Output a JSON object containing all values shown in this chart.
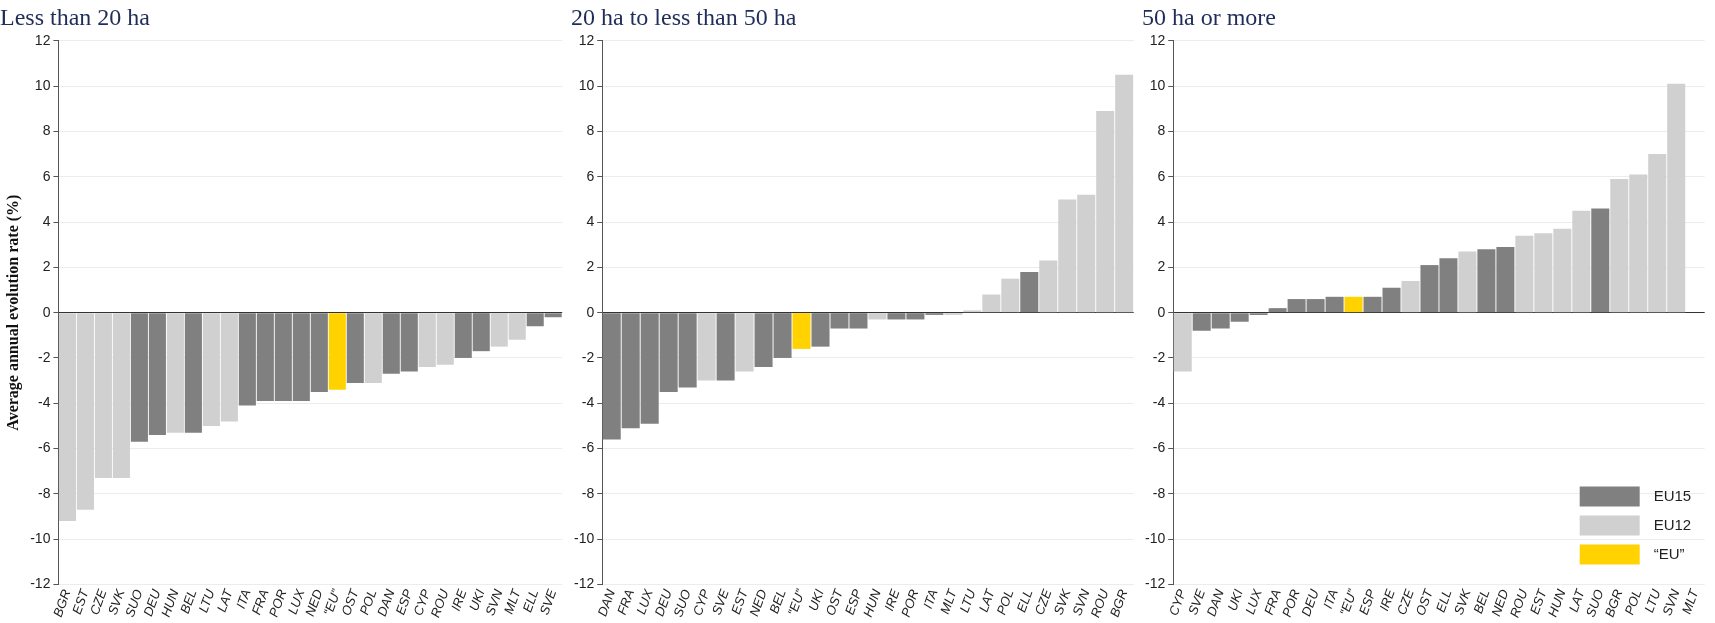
{
  "chart_data": [
    {
      "type": "bar",
      "stacked": true,
      "title": "Less than 20 ha",
      "ylabel": "Average annual evolution rate (%)",
      "categories": [
        "BGR",
        "EST",
        "CZE",
        "SVK",
        "SUO",
        "DEU",
        "HUN",
        "BEL",
        "LTU",
        "LAT",
        "ITA",
        "FRA",
        "POR",
        "LUX",
        "NED",
        "“EU”",
        "OST",
        "POL",
        "DAN",
        "ESP",
        "CYP",
        "ROU",
        "IRE",
        "UKI",
        "SVN",
        "MLT",
        "ELL",
        "SVE"
      ],
      "series": [
        {
          "color": "#808080",
          "values": [
            null,
            null,
            null,
            null,
            -5.7,
            -5.4,
            null,
            -5.3,
            null,
            null,
            -4.1,
            -3.9,
            -3.9,
            -3.9,
            -3.5,
            null,
            -3.1,
            null,
            -2.7,
            -2.6,
            null,
            null,
            -2.0,
            -1.7,
            null,
            null,
            -0.6,
            -0.2
          ]
        },
        {
          "color": "#d0d0d0",
          "values": [
            -9.2,
            -8.7,
            -7.3,
            -7.3,
            null,
            null,
            -5.3,
            null,
            -5.0,
            -4.8,
            null,
            null,
            null,
            null,
            null,
            null,
            null,
            -3.1,
            null,
            null,
            -2.4,
            -2.3,
            null,
            null,
            -1.5,
            -1.2,
            null,
            null
          ]
        },
        {
          "color": "#ffd200",
          "values": [
            null,
            null,
            null,
            null,
            null,
            null,
            null,
            null,
            null,
            null,
            null,
            null,
            null,
            null,
            null,
            -3.4,
            null,
            null,
            null,
            null,
            null,
            null,
            null,
            null,
            null,
            null,
            null,
            null
          ]
        }
      ],
      "ylim": [
        -12,
        12
      ],
      "yticks": [
        -12,
        -10,
        -8,
        -6,
        -4,
        -2,
        0,
        2,
        4,
        6,
        8,
        10,
        12
      ],
      "grid": "y"
    },
    {
      "type": "bar",
      "stacked": true,
      "title": "20 ha to less than 50 ha",
      "categories": [
        "DAN",
        "FRA",
        "LUX",
        "DEU",
        "SUO",
        "CYP",
        "SVE",
        "EST",
        "NED",
        "BEL",
        "“EU”",
        "UKI",
        "OST",
        "ESP",
        "HUN",
        "IRE",
        "POR",
        "ITA",
        "MLT",
        "LTU",
        "LAT",
        "POL",
        "ELL",
        "CZE",
        "SVK",
        "SVN",
        "ROU",
        "BGR"
      ],
      "series": [
        {
          "color": "#808080",
          "values": [
            -5.6,
            -5.1,
            -4.9,
            -3.5,
            -3.3,
            null,
            -3.0,
            null,
            -2.4,
            -2.0,
            null,
            -1.5,
            -0.7,
            -0.7,
            null,
            -0.3,
            -0.3,
            -0.1,
            null,
            null,
            null,
            null,
            1.8,
            null,
            null,
            null,
            null,
            null
          ]
        },
        {
          "color": "#d0d0d0",
          "values": [
            null,
            null,
            null,
            null,
            null,
            -3.0,
            null,
            -2.6,
            null,
            null,
            null,
            null,
            null,
            null,
            -0.3,
            null,
            null,
            null,
            -0.1,
            0.1,
            0.8,
            1.5,
            null,
            2.3,
            5.0,
            5.2,
            8.9,
            10.5
          ]
        },
        {
          "color": "#ffd200",
          "values": [
            null,
            null,
            null,
            null,
            null,
            null,
            null,
            null,
            null,
            null,
            -1.6,
            null,
            null,
            null,
            null,
            null,
            null,
            null,
            null,
            null,
            null,
            null,
            null,
            null,
            null,
            null,
            null,
            null
          ]
        }
      ],
      "ylim": [
        -12,
        12
      ],
      "yticks": [
        -12,
        -10,
        -8,
        -6,
        -4,
        -2,
        0,
        2,
        4,
        6,
        8,
        10,
        12
      ],
      "grid": "y"
    },
    {
      "type": "bar",
      "stacked": true,
      "title": "50 ha or more",
      "categories": [
        "CYP",
        "SVE",
        "DAN",
        "UKI",
        "LUX",
        "FRA",
        "POR",
        "DEU",
        "ITA",
        "“EU”",
        "ESP",
        "IRE",
        "CZE",
        "OST",
        "ELL",
        "SVK",
        "BEL",
        "NED",
        "ROU",
        "EST",
        "HUN",
        "LAT",
        "SUO",
        "BGR",
        "POL",
        "LTU",
        "SVN",
        "MLT"
      ],
      "series": [
        {
          "name": "EU15",
          "color": "#808080",
          "values": [
            null,
            -0.8,
            -0.7,
            -0.4,
            -0.1,
            0.2,
            0.6,
            0.6,
            0.7,
            null,
            0.7,
            1.1,
            null,
            2.1,
            2.4,
            null,
            2.8,
            2.9,
            null,
            null,
            null,
            null,
            4.6,
            null,
            null,
            null,
            null,
            null
          ]
        },
        {
          "name": "EU12",
          "color": "#d0d0d0",
          "values": [
            -2.6,
            null,
            null,
            null,
            null,
            null,
            null,
            null,
            null,
            null,
            null,
            null,
            1.4,
            null,
            null,
            2.7,
            null,
            null,
            3.4,
            3.5,
            3.7,
            4.5,
            null,
            5.9,
            6.1,
            7.0,
            10.1,
            null
          ]
        },
        {
          "name": "“EU”",
          "color": "#ffd200",
          "values": [
            null,
            null,
            null,
            null,
            null,
            null,
            null,
            null,
            null,
            0.7,
            null,
            null,
            null,
            null,
            null,
            null,
            null,
            null,
            null,
            null,
            null,
            null,
            null,
            null,
            null,
            null,
            null,
            null
          ]
        }
      ],
      "ylim": [
        -12,
        12
      ],
      "yticks": [
        -12,
        -10,
        -8,
        -6,
        -4,
        -2,
        0,
        2,
        4,
        6,
        8,
        10,
        12
      ],
      "grid": "y",
      "legend": "bottom right"
    }
  ]
}
